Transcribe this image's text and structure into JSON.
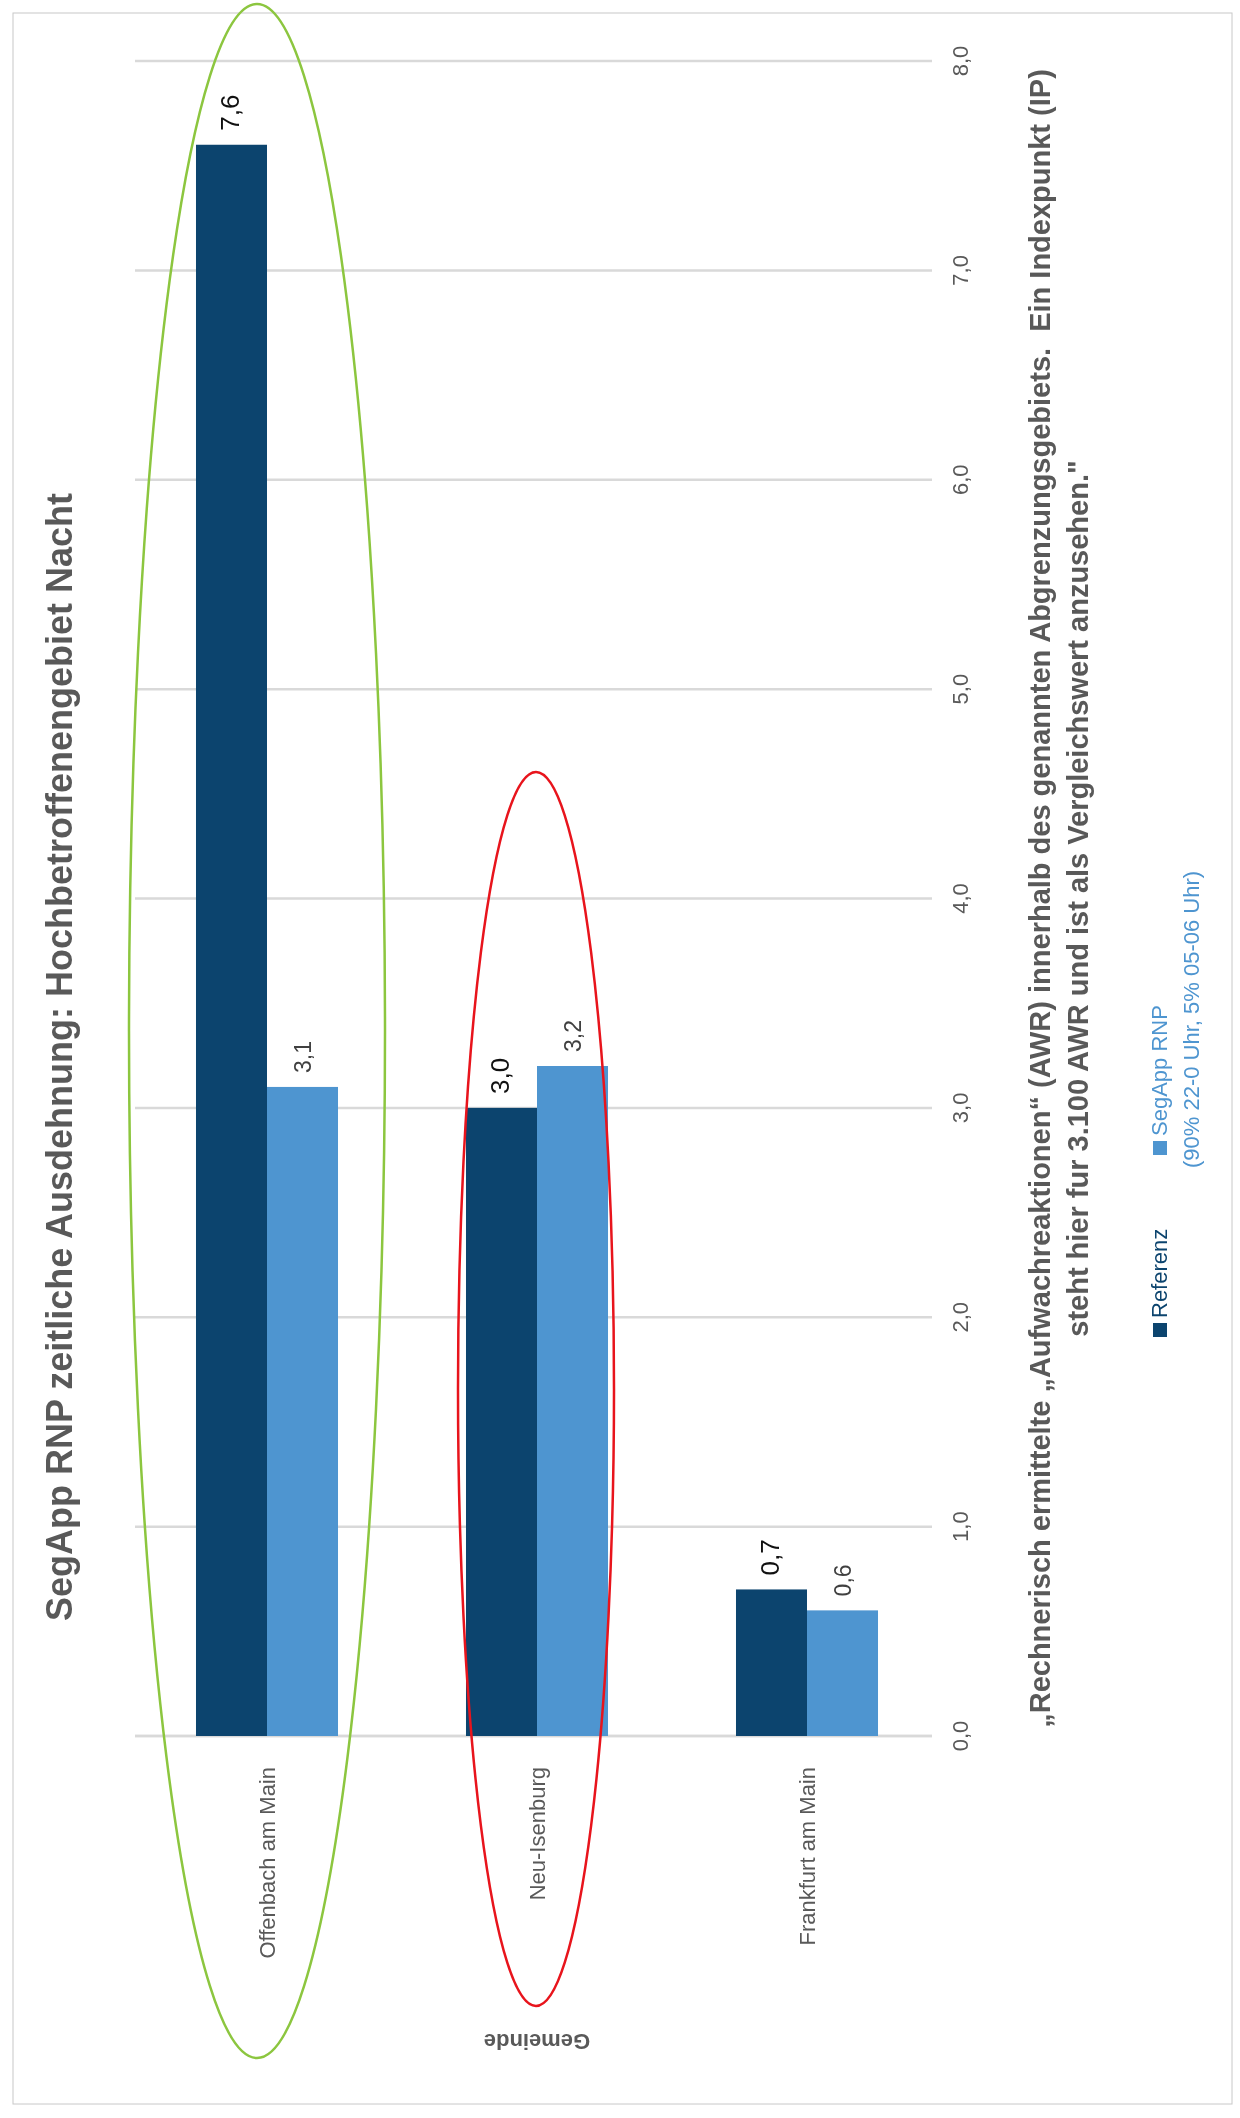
{
  "chart_data": {
    "type": "bar",
    "title": "SegApp RNP zeitliche Ausdehnung: Hochbetroffenengebiet Nacht",
    "ylabel": "„Rechnerisch ermittelte „Aufwachreaktionen“ (AWR) innerhalb des genannten Abgrenzungsgebiets.  Ein Indexpunkt (IP) steht hier fur 3.100 AWR und ist als Vergleichswert anzusehen.\"",
    "xlabel": "Gemeinde",
    "categories": [
      "Offenbach am Main",
      "Neu-Isenburg",
      "Frankfurt am Main"
    ],
    "series": [
      {
        "name": "Referenz",
        "color": "#0c446e",
        "values": [
          7.6,
          3.0,
          0.7
        ],
        "value_labels": [
          "7,6",
          "3,0",
          "0,7"
        ]
      },
      {
        "name": "SegApp RNP\n(90% 22-0 Uhr, 5% 05-06 Uhr)",
        "color": "#4e95d0",
        "values": [
          3.1,
          3.2,
          0.6
        ],
        "value_labels": [
          "3,1",
          "3,2",
          "0,6"
        ]
      }
    ],
    "ylim": [
      0,
      8
    ],
    "yticks": [
      {
        "value": 0,
        "label": "0,0"
      },
      {
        "value": 1,
        "label": "1,0"
      },
      {
        "value": 2,
        "label": "2,0"
      },
      {
        "value": 3,
        "label": "3,0"
      },
      {
        "value": 4,
        "label": "4,0"
      },
      {
        "value": 5,
        "label": "5,0"
      },
      {
        "value": 6,
        "label": "6,0"
      },
      {
        "value": 7,
        "label": "7,0"
      },
      {
        "value": 8,
        "label": "8,0"
      }
    ],
    "grid": "y",
    "legend": "right"
  }
}
